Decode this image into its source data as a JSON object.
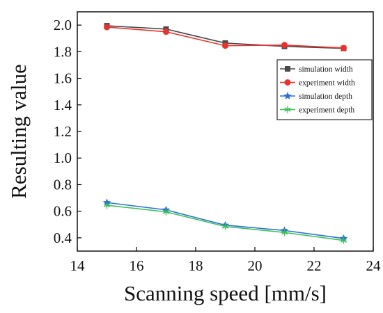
{
  "chart_data": {
    "type": "line",
    "title": "",
    "xlabel": "Scanning speed [mm/s]",
    "ylabel": "Resulting value",
    "xlim": [
      14,
      24
    ],
    "ylim": [
      0.3,
      2.1
    ],
    "x_ticks": [
      14,
      16,
      18,
      20,
      22,
      24
    ],
    "y_ticks": [
      0.4,
      0.6,
      0.8,
      1.0,
      1.2,
      1.4,
      1.6,
      1.8,
      2.0
    ],
    "x_tick_labels": [
      "14",
      "16",
      "18",
      "20",
      "22",
      "24"
    ],
    "y_tick_labels": [
      "0.4",
      "0.6",
      "0.8",
      "1.0",
      "1.2",
      "1.4",
      "1.6",
      "1.8",
      "2.0"
    ],
    "grid": false,
    "legend_position": "upper-right",
    "x": [
      15,
      17,
      19,
      21,
      23
    ],
    "series": [
      {
        "name": "simulation width",
        "values": [
          1.995,
          1.97,
          1.865,
          1.84,
          1.825
        ],
        "color": "#4a4a4a",
        "marker": "square"
      },
      {
        "name": "experiment width",
        "values": [
          1.985,
          1.95,
          1.845,
          1.85,
          1.828
        ],
        "color": "#e8322e",
        "marker": "circle"
      },
      {
        "name": "simulation depth",
        "values": [
          0.665,
          0.61,
          0.495,
          0.455,
          0.395
        ],
        "color": "#2a6fd6",
        "marker": "star"
      },
      {
        "name": "experiment depth",
        "values": [
          0.645,
          0.595,
          0.485,
          0.44,
          0.38
        ],
        "color": "#3cbf5a",
        "marker": "asterisk"
      }
    ]
  }
}
